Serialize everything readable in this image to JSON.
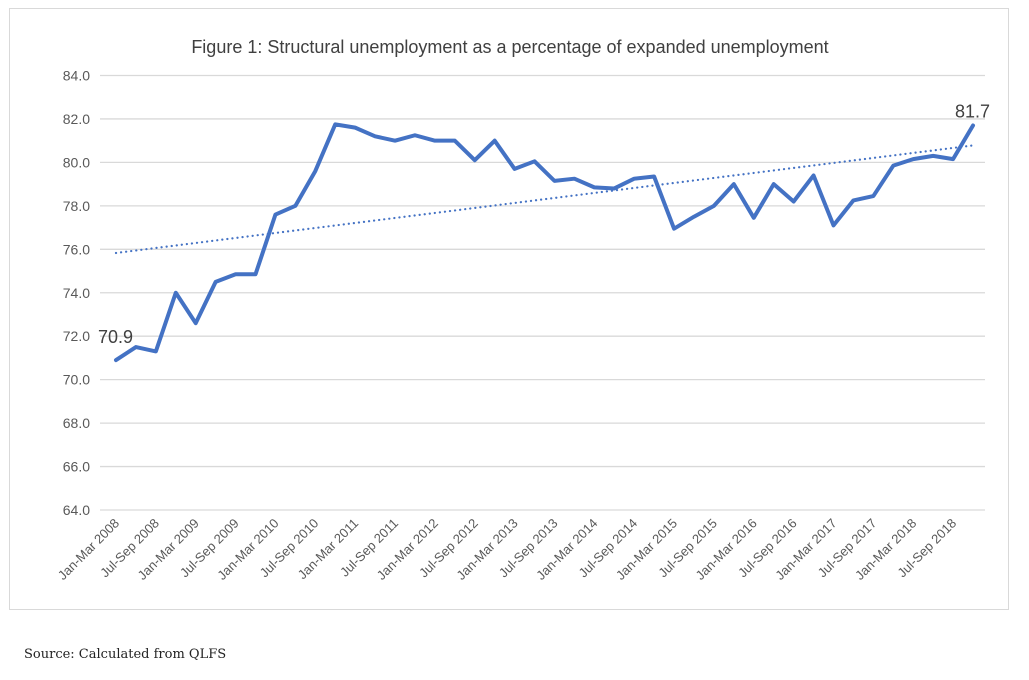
{
  "chart_data": {
    "type": "line",
    "title": "Figure 1: Structural unemployment as a percentage of expanded unemployment",
    "xlabel": "",
    "ylabel": "",
    "ylim": [
      64,
      84
    ],
    "y_ticks": [
      "64.0",
      "66.0",
      "68.0",
      "70.0",
      "72.0",
      "74.0",
      "76.0",
      "78.0",
      "80.0",
      "82.0",
      "84.0"
    ],
    "x_tick_labels": [
      "Jan-Mar 2008",
      "Jul-Sep 2008",
      "Jan-Mar 2009",
      "Jul-Sep 2009",
      "Jan-Mar 2010",
      "Jul-Sep 2010",
      "Jan-Mar 2011",
      "Jul-Sep 2011",
      "Jan-Mar 2012",
      "Jul-Sep 2012",
      "Jan-Mar 2013",
      "Jul-Sep 2013",
      "Jan-Mar 2014",
      "Jul-Sep 2014",
      "Jan-Mar 2015",
      "Jul-Sep 2015",
      "Jan-Mar 2016",
      "Jul-Sep 2016",
      "Jan-Mar 2017",
      "Jul-Sep 2017",
      "Jan-Mar 2018",
      "Jul-Sep 2018"
    ],
    "values": [
      70.9,
      71.5,
      71.3,
      74.0,
      72.6,
      74.5,
      74.85,
      74.85,
      77.6,
      78.0,
      79.6,
      81.75,
      81.6,
      81.2,
      81.0,
      81.25,
      81.0,
      81.0,
      80.1,
      81.0,
      79.7,
      80.05,
      79.15,
      79.25,
      78.85,
      78.8,
      79.25,
      79.35,
      76.95,
      77.5,
      78.0,
      79.0,
      77.45,
      79.0,
      78.2,
      79.4,
      77.1,
      78.25,
      78.45,
      79.85,
      80.15,
      80.3,
      80.15,
      81.7
    ],
    "data_labels": {
      "first": "70.9",
      "last": "81.7"
    },
    "trendline": "linear (dotted)",
    "grid": true,
    "legend": "none",
    "colors": {
      "series": "#4472c4",
      "grid": "#d9d9d9",
      "text": "#595959"
    }
  },
  "source": "Source: Calculated from QLFS"
}
